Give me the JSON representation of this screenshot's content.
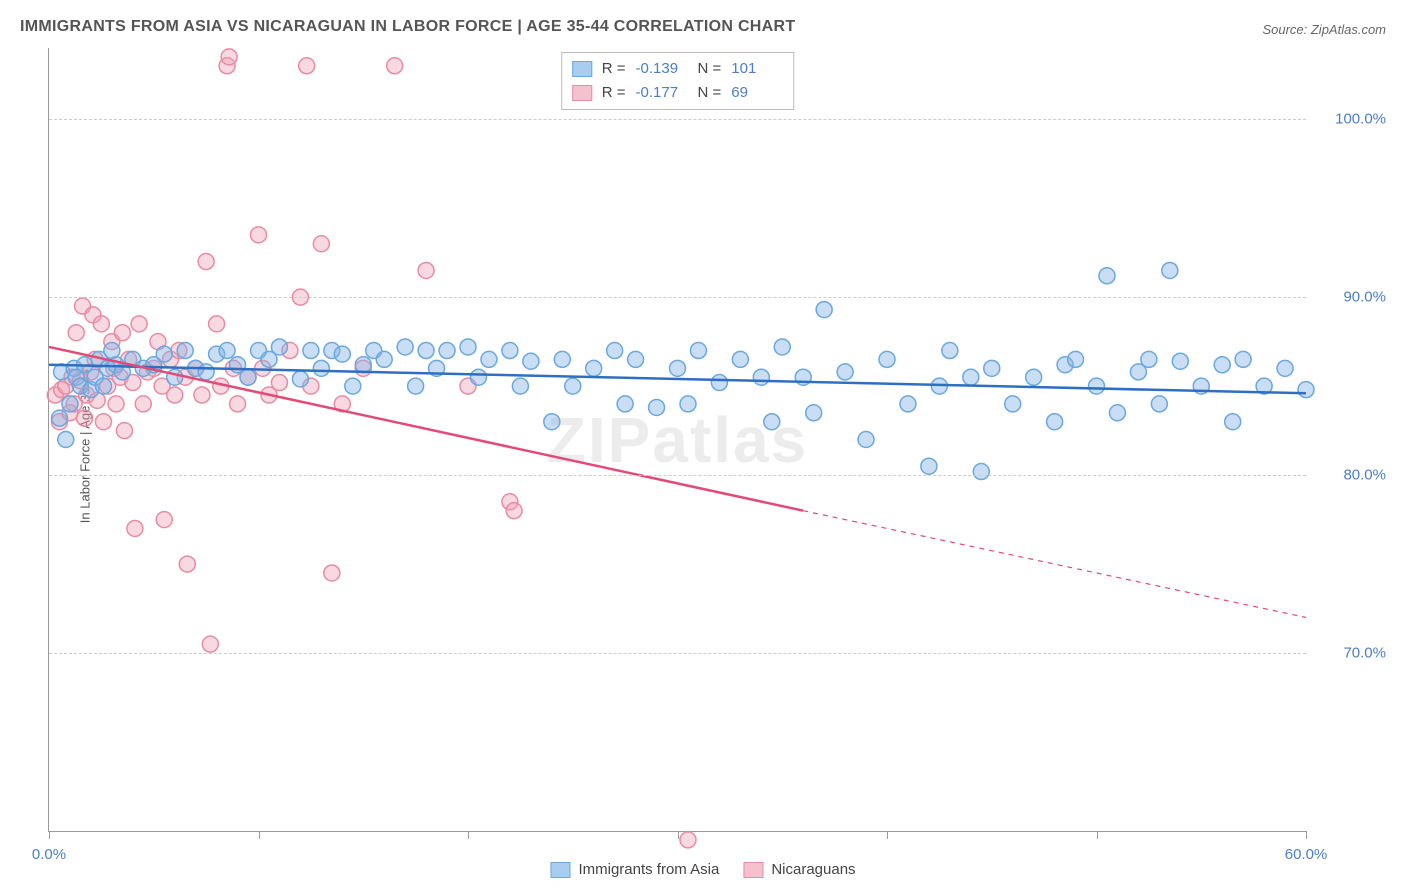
{
  "title": "IMMIGRANTS FROM ASIA VS NICARAGUAN IN LABOR FORCE | AGE 35-44 CORRELATION CHART",
  "source": "Source: ZipAtlas.com",
  "y_axis_label": "In Labor Force | Age 35-44",
  "watermark": "ZIPatlas",
  "chart": {
    "type": "scatter",
    "xlim": [
      0,
      60
    ],
    "ylim": [
      60,
      104
    ],
    "y_ticks": [
      70,
      80,
      90,
      100
    ],
    "y_tick_labels": [
      "70.0%",
      "80.0%",
      "90.0%",
      "100.0%"
    ],
    "x_ticks": [
      0,
      10,
      20,
      30,
      40,
      50,
      60
    ],
    "x_tick_labels_shown": {
      "0": "0.0%",
      "60": "60.0%"
    },
    "background_color": "#ffffff",
    "grid_color": "#cccccc",
    "axis_color": "#999999",
    "tick_label_color": "#4a7ec7",
    "marker_radius": 8,
    "marker_stroke_width": 1.5,
    "trend_line_width": 2.5,
    "series": [
      {
        "name": "Immigrants from Asia",
        "color_fill": "rgba(135,180,230,0.45)",
        "color_stroke": "#6aa8de",
        "trend_color": "#2f6fc2",
        "swatch_fill": "#a9cdef",
        "swatch_border": "#6aa8de",
        "R": "-0.139",
        "N": "101",
        "trend": {
          "x1": 0,
          "y1": 86.2,
          "x2": 60,
          "y2": 84.6,
          "dash_after_x": 60
        },
        "points": [
          [
            0.5,
            83.2
          ],
          [
            0.6,
            85.8
          ],
          [
            0.8,
            82.0
          ],
          [
            1.0,
            84.0
          ],
          [
            1.2,
            86.0
          ],
          [
            1.3,
            85.5
          ],
          [
            1.5,
            85.0
          ],
          [
            1.7,
            86.2
          ],
          [
            2.0,
            84.8
          ],
          [
            2.2,
            85.5
          ],
          [
            2.4,
            86.5
          ],
          [
            2.6,
            85.0
          ],
          [
            2.8,
            86.0
          ],
          [
            3.0,
            87.0
          ],
          [
            3.2,
            86.2
          ],
          [
            3.5,
            85.8
          ],
          [
            4.0,
            86.5
          ],
          [
            4.5,
            86.0
          ],
          [
            5.0,
            86.2
          ],
          [
            5.5,
            86.8
          ],
          [
            6.0,
            85.5
          ],
          [
            6.5,
            87.0
          ],
          [
            7.0,
            86.0
          ],
          [
            7.5,
            85.8
          ],
          [
            8.0,
            86.8
          ],
          [
            8.5,
            87.0
          ],
          [
            9.0,
            86.2
          ],
          [
            9.5,
            85.5
          ],
          [
            10.0,
            87.0
          ],
          [
            10.5,
            86.5
          ],
          [
            11.0,
            87.2
          ],
          [
            12.0,
            85.4
          ],
          [
            12.5,
            87.0
          ],
          [
            13.0,
            86.0
          ],
          [
            13.5,
            87.0
          ],
          [
            14.0,
            86.8
          ],
          [
            14.5,
            85.0
          ],
          [
            15.0,
            86.2
          ],
          [
            15.5,
            87.0
          ],
          [
            16.0,
            86.5
          ],
          [
            17.0,
            87.2
          ],
          [
            17.5,
            85.0
          ],
          [
            18.0,
            87.0
          ],
          [
            18.5,
            86.0
          ],
          [
            19.0,
            87.0
          ],
          [
            20.0,
            87.2
          ],
          [
            20.5,
            85.5
          ],
          [
            21.0,
            86.5
          ],
          [
            22.0,
            87.0
          ],
          [
            22.5,
            85.0
          ],
          [
            23.0,
            86.4
          ],
          [
            24.0,
            83.0
          ],
          [
            24.5,
            86.5
          ],
          [
            25.0,
            85.0
          ],
          [
            26.0,
            86.0
          ],
          [
            27.0,
            87.0
          ],
          [
            27.5,
            84.0
          ],
          [
            28.0,
            86.5
          ],
          [
            29.0,
            83.8
          ],
          [
            30.0,
            86.0
          ],
          [
            30.5,
            84.0
          ],
          [
            31.0,
            87.0
          ],
          [
            32.0,
            85.2
          ],
          [
            33.0,
            86.5
          ],
          [
            34.0,
            85.5
          ],
          [
            34.5,
            83.0
          ],
          [
            35.0,
            87.2
          ],
          [
            36.0,
            85.5
          ],
          [
            36.5,
            83.5
          ],
          [
            37.0,
            89.3
          ],
          [
            38.0,
            85.8
          ],
          [
            39.0,
            82.0
          ],
          [
            40.0,
            86.5
          ],
          [
            41.0,
            84.0
          ],
          [
            42.0,
            80.5
          ],
          [
            42.5,
            85.0
          ],
          [
            43.0,
            87.0
          ],
          [
            44.0,
            85.5
          ],
          [
            44.5,
            80.2
          ],
          [
            45.0,
            86.0
          ],
          [
            46.0,
            84.0
          ],
          [
            47.0,
            85.5
          ],
          [
            48.0,
            83.0
          ],
          [
            48.5,
            86.2
          ],
          [
            49.0,
            86.5
          ],
          [
            50.0,
            85.0
          ],
          [
            50.5,
            91.2
          ],
          [
            51.0,
            83.5
          ],
          [
            52.0,
            85.8
          ],
          [
            52.5,
            86.5
          ],
          [
            53.0,
            84.0
          ],
          [
            53.5,
            91.5
          ],
          [
            54.0,
            86.4
          ],
          [
            55.0,
            85.0
          ],
          [
            56.0,
            86.2
          ],
          [
            56.5,
            83.0
          ],
          [
            57.0,
            86.5
          ],
          [
            58.0,
            85.0
          ],
          [
            59.0,
            86.0
          ],
          [
            60.0,
            84.8
          ]
        ]
      },
      {
        "name": "Nicaraguans",
        "color_fill": "rgba(240,160,180,0.40)",
        "color_stroke": "#e88ba5",
        "trend_color": "#e24a78",
        "swatch_fill": "#f5c1cf",
        "swatch_border": "#e88ba5",
        "R": "-0.177",
        "N": "69",
        "trend": {
          "x1": 0,
          "y1": 87.2,
          "x2": 36,
          "y2": 78.0,
          "dash_after_x": 36,
          "dash_x2": 60,
          "dash_y2": 72.0
        },
        "points": [
          [
            0.3,
            84.5
          ],
          [
            0.5,
            83.0
          ],
          [
            0.6,
            84.8
          ],
          [
            0.8,
            85.0
          ],
          [
            1.0,
            83.5
          ],
          [
            1.1,
            85.5
          ],
          [
            1.2,
            84.0
          ],
          [
            1.3,
            88.0
          ],
          [
            1.5,
            85.3
          ],
          [
            1.6,
            89.5
          ],
          [
            1.7,
            83.2
          ],
          [
            1.8,
            84.5
          ],
          [
            2.0,
            85.8
          ],
          [
            2.1,
            89.0
          ],
          [
            2.2,
            86.5
          ],
          [
            2.3,
            84.2
          ],
          [
            2.5,
            88.5
          ],
          [
            2.6,
            83.0
          ],
          [
            2.8,
            85.0
          ],
          [
            3.0,
            87.5
          ],
          [
            3.1,
            86.0
          ],
          [
            3.2,
            84.0
          ],
          [
            3.4,
            85.5
          ],
          [
            3.5,
            88.0
          ],
          [
            3.6,
            82.5
          ],
          [
            3.8,
            86.5
          ],
          [
            4.0,
            85.2
          ],
          [
            4.1,
            77.0
          ],
          [
            4.3,
            88.5
          ],
          [
            4.5,
            84.0
          ],
          [
            4.7,
            85.8
          ],
          [
            5.0,
            86.0
          ],
          [
            5.2,
            87.5
          ],
          [
            5.4,
            85.0
          ],
          [
            5.5,
            77.5
          ],
          [
            5.8,
            86.5
          ],
          [
            6.0,
            84.5
          ],
          [
            6.2,
            87.0
          ],
          [
            6.5,
            85.5
          ],
          [
            6.6,
            75.0
          ],
          [
            7.0,
            86.0
          ],
          [
            7.3,
            84.5
          ],
          [
            7.5,
            92.0
          ],
          [
            7.7,
            70.5
          ],
          [
            8.0,
            88.5
          ],
          [
            8.2,
            85.0
          ],
          [
            8.5,
            103.0
          ],
          [
            8.6,
            103.5
          ],
          [
            8.8,
            86.0
          ],
          [
            9.0,
            84.0
          ],
          [
            9.5,
            85.5
          ],
          [
            10.0,
            93.5
          ],
          [
            10.2,
            86.0
          ],
          [
            10.5,
            84.5
          ],
          [
            11.0,
            85.2
          ],
          [
            11.5,
            87.0
          ],
          [
            12.0,
            90.0
          ],
          [
            12.3,
            103.0
          ],
          [
            12.5,
            85.0
          ],
          [
            13.0,
            93.0
          ],
          [
            13.5,
            74.5
          ],
          [
            14.0,
            84.0
          ],
          [
            15.0,
            86.0
          ],
          [
            16.5,
            103.0
          ],
          [
            18.0,
            91.5
          ],
          [
            20.0,
            85.0
          ],
          [
            22.0,
            78.5
          ],
          [
            22.2,
            78.0
          ],
          [
            30.5,
            59.5
          ]
        ]
      }
    ]
  },
  "bottom_legend": [
    {
      "label": "Immigrants from Asia",
      "swatch_fill": "#a9cdef",
      "swatch_border": "#6aa8de"
    },
    {
      "label": "Nicaraguans",
      "swatch_fill": "#f5c1cf",
      "swatch_border": "#e88ba5"
    }
  ]
}
